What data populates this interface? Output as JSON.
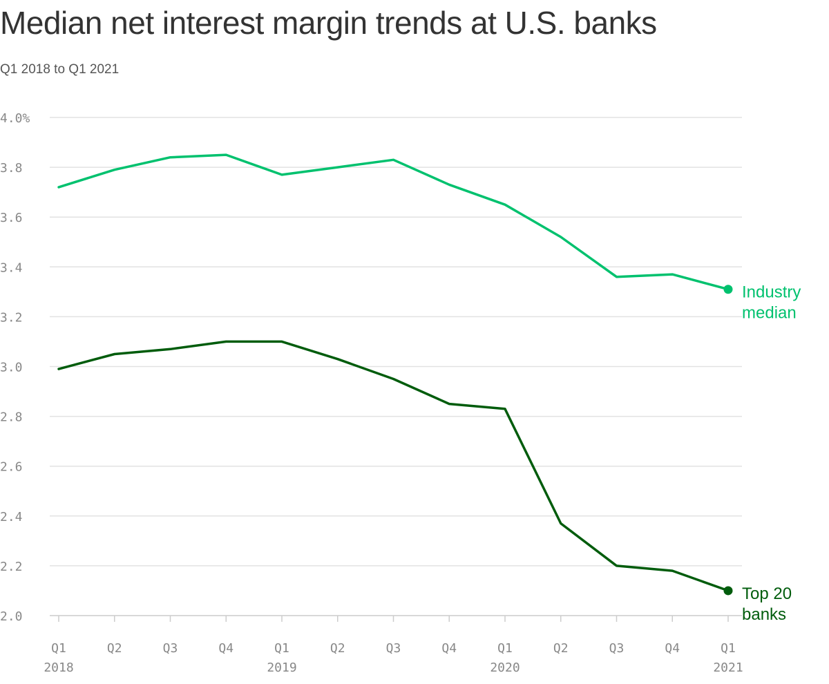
{
  "chart_data": {
    "type": "line",
    "title": "Median net interest margin trends at U.S. banks",
    "subtitle": "Q1 2018 to Q1 2021",
    "categories": [
      "Q1",
      "Q2",
      "Q3",
      "Q4",
      "Q1",
      "Q2",
      "Q3",
      "Q4",
      "Q1",
      "Q2",
      "Q3",
      "Q4",
      "Q1"
    ],
    "year_labels": [
      {
        "index": 0,
        "label": "2018"
      },
      {
        "index": 4,
        "label": "2019"
      },
      {
        "index": 8,
        "label": "2020"
      },
      {
        "index": 12,
        "label": "2021"
      }
    ],
    "ylim": [
      2.0,
      4.0
    ],
    "yticks": [
      2.0,
      2.2,
      2.4,
      2.6,
      2.8,
      3.0,
      3.2,
      3.4,
      3.6,
      3.8,
      4.0
    ],
    "ytick_labels": [
      "2.0",
      "2.2",
      "2.4",
      "2.6",
      "2.8",
      "3.0",
      "3.2",
      "3.4",
      "3.6",
      "3.8",
      "4.0%"
    ],
    "grid": true,
    "series": [
      {
        "name": "Industry median",
        "label_lines": [
          "Industry",
          "median"
        ],
        "color": "#00c16e",
        "values": [
          3.72,
          3.79,
          3.84,
          3.85,
          3.77,
          3.8,
          3.83,
          3.73,
          3.65,
          3.52,
          3.36,
          3.37,
          3.31
        ]
      },
      {
        "name": "Top 20 banks",
        "label_lines": [
          "Top 20",
          "banks"
        ],
        "color": "#005c0c",
        "values": [
          2.99,
          3.05,
          3.07,
          3.1,
          3.1,
          3.03,
          2.95,
          2.85,
          2.83,
          2.37,
          2.2,
          2.18,
          2.1
        ]
      }
    ]
  }
}
